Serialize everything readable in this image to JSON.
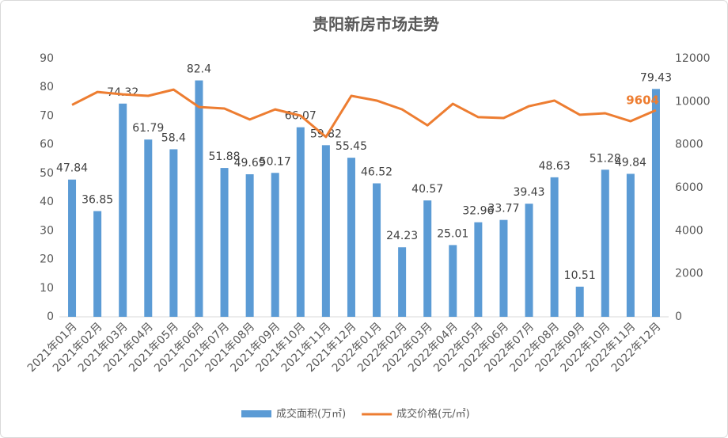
{
  "chart_data": {
    "type": "bar_line",
    "title": "贵阳新房市场走势",
    "categories": [
      "2021年01月",
      "2021年02月",
      "2021年03月",
      "2021年04月",
      "2021年05月",
      "2021年06月",
      "2021年07月",
      "2021年08月",
      "2021年09月",
      "2021年10月",
      "2021年11月",
      "2021年12月",
      "2022年01月",
      "2022年02月",
      "2022年03月",
      "2022年04月",
      "2022年05月",
      "2022年06月",
      "2022年07月",
      "2022年08月",
      "2022年09月",
      "2022年10月",
      "2022年11月",
      "2022年12月"
    ],
    "series": [
      {
        "name": "成交面积(万㎡)",
        "type": "bar",
        "color": "#5b9bd5",
        "axis": "y",
        "values": [
          47.84,
          36.85,
          74.32,
          61.79,
          58.4,
          82.4,
          51.88,
          49.69,
          50.17,
          66.07,
          59.82,
          55.45,
          46.52,
          24.23,
          40.57,
          25.01,
          32.96,
          33.77,
          39.43,
          48.63,
          10.51,
          51.28,
          49.84,
          79.43
        ]
      },
      {
        "name": "成交价格(元/㎡)",
        "type": "line",
        "color": "#ed7d31",
        "axis": "y2",
        "values": [
          9850,
          10450,
          10340,
          10270,
          10560,
          9750,
          9680,
          9170,
          9640,
          9350,
          8360,
          10270,
          10050,
          9640,
          8900,
          9900,
          9280,
          9240,
          9790,
          10050,
          9390,
          9460,
          9090,
          9604
        ],
        "value_labels": [
          null,
          null,
          null,
          null,
          null,
          null,
          null,
          null,
          null,
          null,
          null,
          null,
          null,
          null,
          null,
          null,
          null,
          null,
          null,
          null,
          null,
          null,
          null,
          "9604"
        ]
      }
    ],
    "ylim": [
      0,
      90
    ],
    "yticks": [
      0,
      10,
      20,
      30,
      40,
      50,
      60,
      70,
      80,
      90
    ],
    "y2lim": [
      0,
      12000
    ],
    "y2ticks": [
      0,
      2000,
      4000,
      6000,
      8000,
      10000,
      12000
    ],
    "grid": false,
    "legend": "bottom"
  }
}
